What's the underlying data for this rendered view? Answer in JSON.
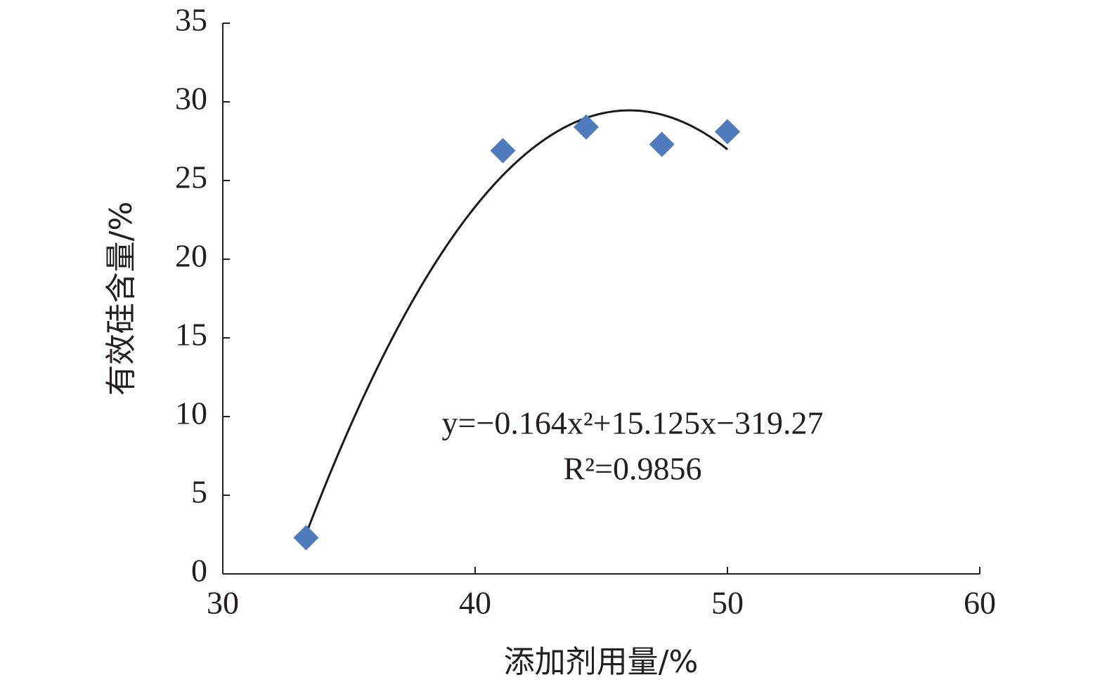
{
  "chart_data": {
    "type": "scatter",
    "x_label": "添加剂用量/%",
    "y_label": "有效硅含量/%",
    "series": [
      {
        "color": "#4f7bbd",
        "x": [
          33.3,
          41.1,
          44.4,
          47.4,
          50
        ],
        "values": [
          2.3,
          26.9,
          28.4,
          27.3,
          28.1
        ]
      }
    ],
    "trendline": {
      "coefficients": [
        -0.164,
        15.125,
        -319.27
      ],
      "color": "#1a1a1a",
      "equation": "y=−0.164x²+15.125x−319.27",
      "r_squared": "R²=0.9856"
    },
    "xlim": [
      30,
      60
    ],
    "xticks": [
      30,
      40,
      50,
      60
    ],
    "ylim": [
      0,
      35
    ],
    "yticks": [
      0,
      5,
      10,
      15,
      20,
      25,
      30,
      35
    ],
    "grid": false
  }
}
